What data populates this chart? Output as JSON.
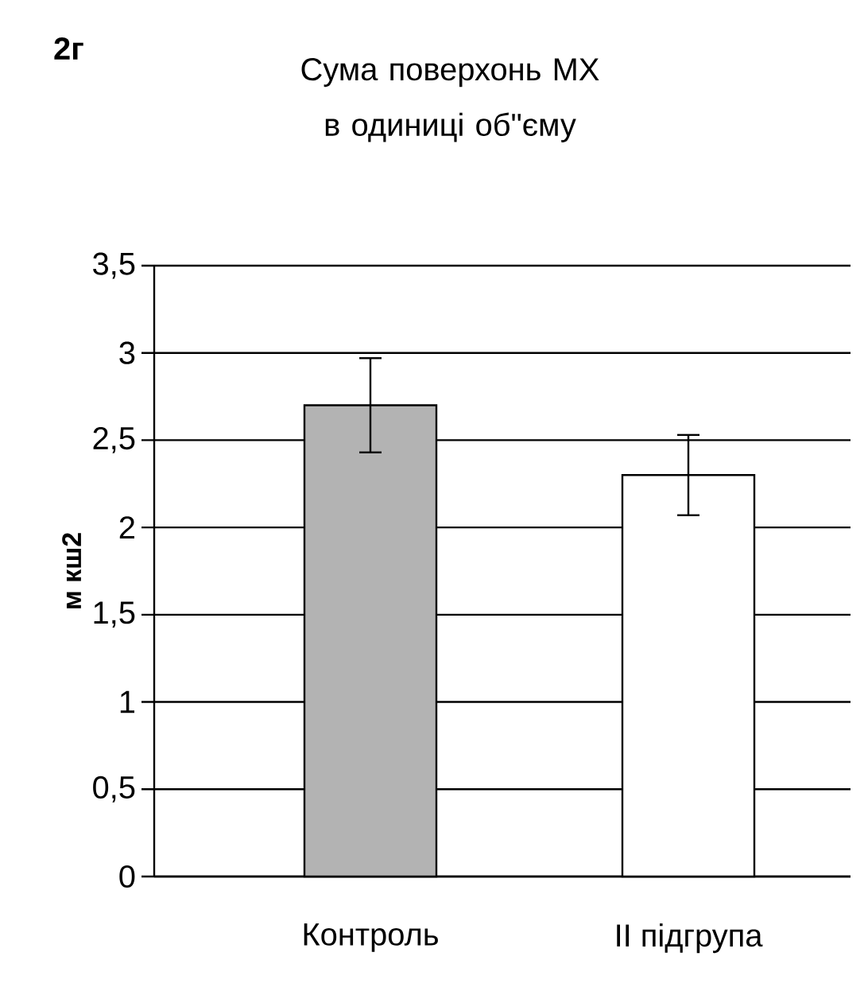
{
  "chart_data": {
    "type": "bar",
    "title": "Сума поверхонь МХ в одиниці об\"єму",
    "annotations": [
      "2г"
    ],
    "ylabel": "м кш2",
    "categories": [
      "Контроль",
      "ІІ підгрупа"
    ],
    "values": [
      2.7,
      2.3
    ],
    "errors": [
      0.27,
      0.23
    ],
    "colors": [
      "#b3b3b3",
      "#ffffff"
    ],
    "ylim": [
      0,
      3.5
    ],
    "yticks": [
      0,
      {
        "value": 0.5,
        "label": "0,5"
      },
      1,
      {
        "value": 1.5,
        "label": "1,5"
      },
      2,
      {
        "value": 2.5,
        "label": "2,5"
      },
      3,
      {
        "value": 3.5,
        "label": "3,5"
      }
    ],
    "grid": "y"
  }
}
